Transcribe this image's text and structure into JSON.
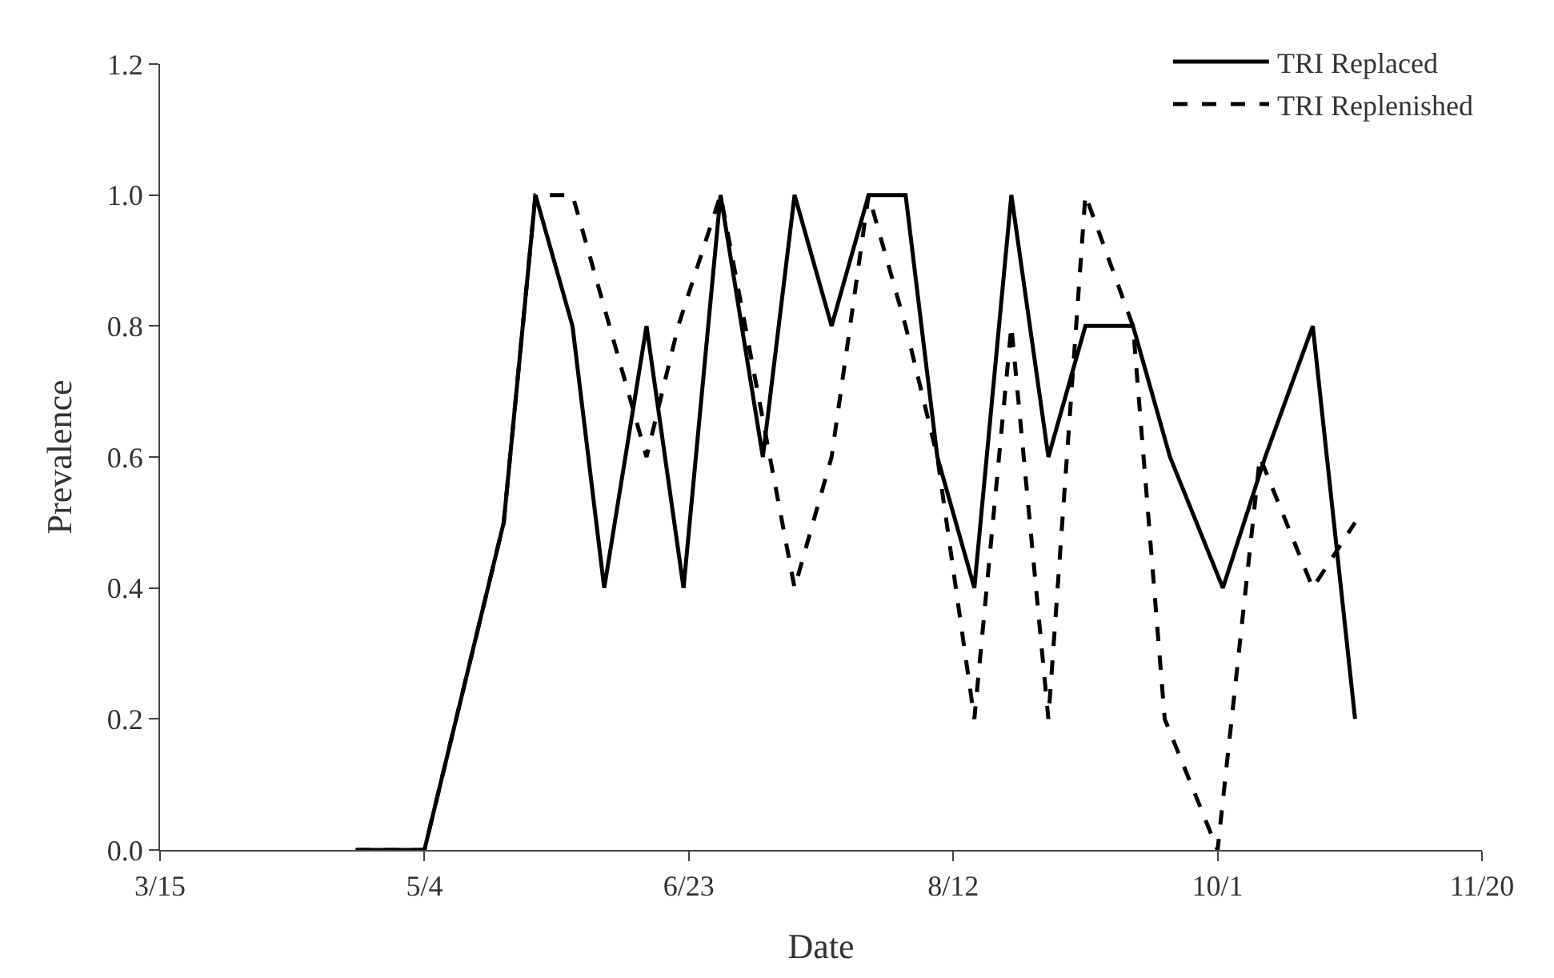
{
  "chart_data": {
    "type": "line",
    "xlabel": "Date",
    "ylabel": "Prevalence",
    "xlim": [
      "--03-15",
      "--11-20"
    ],
    "xticks": [
      {
        "value": "--03-15",
        "label": "3/15"
      },
      {
        "value": "--05-04",
        "label": "5/4"
      },
      {
        "value": "--06-23",
        "label": "6/23"
      },
      {
        "value": "--08-12",
        "label": "8/12"
      },
      {
        "value": "--10-01",
        "label": "10/1"
      },
      {
        "value": "--11-20",
        "label": "11/20"
      }
    ],
    "ylim": [
      0,
      1.2
    ],
    "yticks": [
      {
        "value": 0,
        "label": "0.0"
      },
      {
        "value": 0.2,
        "label": "0.2"
      },
      {
        "value": 0.4,
        "label": "0.4"
      },
      {
        "value": 0.6,
        "label": "0.6"
      },
      {
        "value": 0.8,
        "label": "0.8"
      },
      {
        "value": 1.0,
        "label": "1.0"
      },
      {
        "value": 1.2,
        "label": "1.2"
      }
    ],
    "legend": "top right",
    "marker": "none",
    "series": [
      {
        "name": "TRI Replaced",
        "color": "#000000",
        "line_style": "solid",
        "x": [
          "--04-21",
          "--05-04",
          "--05-19",
          "--05-25",
          "--06-01",
          "--06-07",
          "--06-15",
          "--06-22",
          "--06-29",
          "--07-07",
          "--07-13",
          "--07-20",
          "--07-27",
          "--08-03",
          "--08-09",
          "--08-16",
          "--08-23",
          "--08-30",
          "--09-06",
          "--09-15",
          "--09-22",
          "--10-02",
          "--10-10",
          "--10-19",
          "--10-27"
        ],
        "values": [
          0,
          0,
          0.5,
          1.0,
          0.8,
          0.4,
          0.8,
          0.4,
          1.0,
          0.6,
          1.0,
          0.8,
          1.0,
          1.0,
          0.6,
          0.4,
          1.0,
          0.6,
          0.8,
          0.8,
          0.6,
          0.4,
          0.6,
          0.8,
          0.2
        ]
      },
      {
        "name": "TRI Replenished",
        "color": "#000000",
        "line_style": "dashed",
        "x": [
          "--04-21",
          "--05-04",
          "--05-19",
          "--05-25",
          "--06-01",
          "--06-15",
          "--06-21",
          "--06-29",
          "--07-13",
          "--07-20",
          "--07-27",
          "--08-03",
          "--08-09",
          "--08-16",
          "--08-23",
          "--08-30",
          "--09-06",
          "--09-15",
          "--09-21",
          "--10-01",
          "--10-09",
          "--10-19",
          "--10-27"
        ],
        "values": [
          0,
          0,
          0.5,
          1.0,
          1.0,
          0.6,
          0.8,
          1.0,
          0.4,
          0.6,
          1.0,
          0.8,
          0.6,
          0.2,
          0.8,
          0.2,
          1.0,
          0.8,
          0.2,
          0,
          0.6,
          0.4,
          0.5
        ]
      }
    ]
  }
}
